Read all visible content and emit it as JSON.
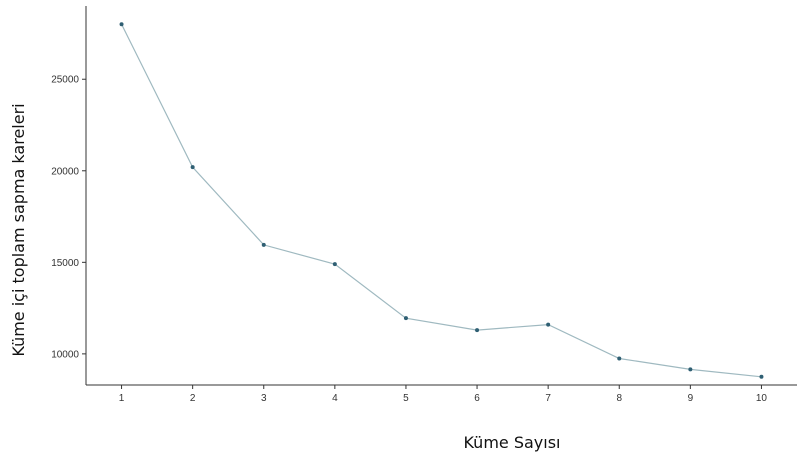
{
  "chart_data": {
    "type": "line",
    "title": "",
    "xlabel": "Küme Sayısı",
    "ylabel": "Küme içi toplam sapma kareleri",
    "x": [
      1,
      2,
      3,
      4,
      5,
      6,
      7,
      8,
      9,
      10
    ],
    "x_ticks": [
      "1",
      "2",
      "3",
      "4",
      "5",
      "6",
      "7",
      "8",
      "9",
      "10"
    ],
    "y_ticks": [
      "10000",
      "15000",
      "20000",
      "25000"
    ],
    "y_tick_values": [
      10000,
      15000,
      20000,
      25000
    ],
    "series": [
      {
        "values": [
          28000,
          20200,
          15950,
          14900,
          11950,
          11300,
          11600,
          9750,
          9150,
          8750
        ],
        "line_color": "#9fb9c0",
        "marker_color": "#2f5f73"
      }
    ],
    "xlim": [
      0.5,
      10.5
    ],
    "ylim": [
      8300,
      29000
    ],
    "grid": false,
    "legend": "none"
  }
}
